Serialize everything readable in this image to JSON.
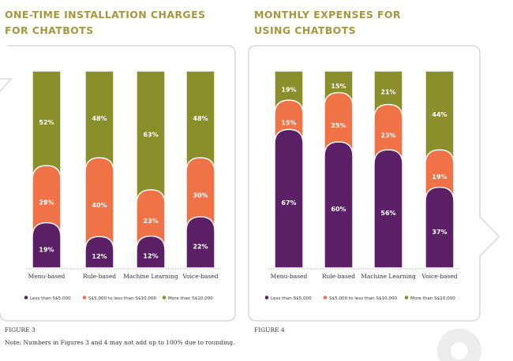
{
  "colors": {
    "purple": "#5b1f66",
    "orange": "#f07347",
    "olive": "#8a8f2c",
    "title": "#a5963f",
    "frame": "#d8d8d8"
  },
  "chart_data": [
    {
      "type": "bar",
      "stacked": true,
      "title": [
        "ONE-TIME INSTALLATION CHARGES",
        "FOR CHATBOTS"
      ],
      "figure_label": "FIGURE 3",
      "categories": [
        "Menu-based",
        "Rule-based",
        "Machine Learning",
        "Voice-based"
      ],
      "series": [
        {
          "name": "Less than S$5,000",
          "color": "#5b1f66",
          "values": [
            19,
            12,
            12,
            22
          ]
        },
        {
          "name": "S$5,000 to less than S$10,000",
          "color": "#f07347",
          "values": [
            29,
            40,
            23,
            30
          ]
        },
        {
          "name": "More than S$10,000",
          "color": "#8a8f2c",
          "values": [
            52,
            48,
            63,
            48
          ]
        }
      ],
      "value_suffix": "%",
      "legend": "bottom"
    },
    {
      "type": "bar",
      "stacked": true,
      "title": [
        "MONTHLY EXPENSES FOR",
        "USING CHATBOTS"
      ],
      "figure_label": "FIGURE 4",
      "categories": [
        "Menu-based",
        "Rule-based",
        "Machine Learning",
        "Voice-based"
      ],
      "series": [
        {
          "name": "Less than S$5,000",
          "color": "#5b1f66",
          "values": [
            67,
            60,
            56,
            37
          ]
        },
        {
          "name": "S$5,000 to less than S$10,000",
          "color": "#f07347",
          "values": [
            15,
            25,
            23,
            19
          ]
        },
        {
          "name": "More than S$10,000",
          "color": "#8a8f2c",
          "values": [
            19,
            15,
            21,
            44
          ]
        }
      ],
      "value_suffix": "%",
      "legend": "bottom"
    }
  ],
  "note": "Note: Numbers in Figures 3 and 4 may not add up to 100% due to rounding."
}
